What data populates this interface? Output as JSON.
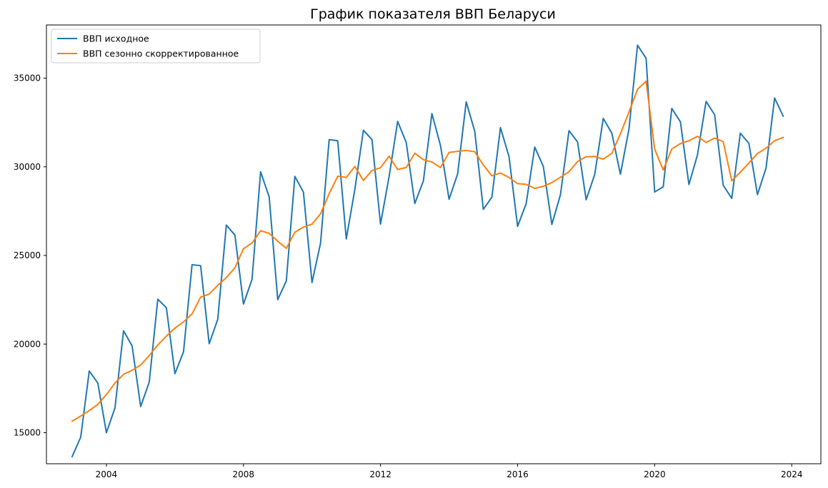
{
  "chart_data": {
    "type": "line",
    "title": "График показателя ВВП Беларуси",
    "xlabel": "",
    "ylabel": "",
    "x_start": "2003-01",
    "x_step": "quarter",
    "xlim": [
      2002.25,
      2024.85
    ],
    "ylim": [
      13250,
      38000
    ],
    "x_ticks": [
      2004,
      2008,
      2012,
      2016,
      2020,
      2024
    ],
    "y_ticks": [
      15000,
      20000,
      25000,
      30000,
      35000
    ],
    "grid": false,
    "legend_position": "top-left",
    "x": [
      2003.0,
      2003.25,
      2003.5,
      2003.75,
      2004.0,
      2004.25,
      2004.5,
      2004.75,
      2005.0,
      2005.25,
      2005.5,
      2005.75,
      2006.0,
      2006.25,
      2006.5,
      2006.75,
      2007.0,
      2007.25,
      2007.5,
      2007.75,
      2008.0,
      2008.25,
      2008.5,
      2008.75,
      2009.0,
      2009.25,
      2009.5,
      2009.75,
      2010.0,
      2010.25,
      2010.5,
      2010.75,
      2011.0,
      2011.25,
      2011.5,
      2011.75,
      2012.0,
      2012.25,
      2012.5,
      2012.75,
      2013.0,
      2013.25,
      2013.5,
      2013.75,
      2014.0,
      2014.25,
      2014.5,
      2014.75,
      2015.0,
      2015.25,
      2015.5,
      2015.75,
      2016.0,
      2016.25,
      2016.5,
      2016.75,
      2017.0,
      2017.25,
      2017.5,
      2017.75,
      2018.0,
      2018.25,
      2018.5,
      2018.75,
      2019.0,
      2019.25,
      2019.5,
      2019.75,
      2020.0,
      2020.25,
      2020.5,
      2020.75,
      2021.0,
      2021.25,
      2021.5,
      2021.75,
      2022.0,
      2022.25,
      2022.5,
      2022.75,
      2023.0,
      2023.25,
      2023.5,
      2023.75
    ],
    "series": [
      {
        "name": "ВВП исходное",
        "color": "#1f77b4",
        "values": [
          13650,
          14750,
          18480,
          17800,
          15000,
          16400,
          20750,
          19900,
          16480,
          17850,
          22530,
          22050,
          18330,
          19560,
          24480,
          24420,
          20020,
          21400,
          26710,
          26150,
          22260,
          23650,
          29720,
          28300,
          22510,
          23560,
          29460,
          28570,
          23470,
          25700,
          31530,
          31470,
          25930,
          28720,
          32060,
          31540,
          26770,
          29450,
          32560,
          31370,
          27930,
          29200,
          33000,
          31200,
          28170,
          29600,
          33660,
          32000,
          27600,
          28290,
          32210,
          30570,
          26640,
          27920,
          31110,
          30030,
          26750,
          28420,
          32040,
          31400,
          28140,
          29560,
          32730,
          31900,
          29580,
          32120,
          36860,
          36120,
          28580,
          28870,
          33290,
          32540,
          29000,
          30680,
          33690,
          32940,
          28960,
          28220,
          31900,
          31320,
          28430,
          29930,
          33880,
          32860
        ]
      },
      {
        "name": "ВВП сезонно скорректированное",
        "color": "#ff7f0e",
        "values": [
          15650,
          15940,
          16250,
          16600,
          17150,
          17800,
          18300,
          18520,
          18820,
          19350,
          19950,
          20450,
          20900,
          21250,
          21700,
          22650,
          22820,
          23320,
          23750,
          24300,
          25380,
          25700,
          26390,
          26250,
          25800,
          25400,
          26310,
          26600,
          26770,
          27350,
          28480,
          29470,
          29400,
          30020,
          29230,
          29790,
          29950,
          30600,
          29850,
          29960,
          30770,
          30400,
          30270,
          29960,
          30810,
          30870,
          30920,
          30850,
          30100,
          29490,
          29650,
          29400,
          29050,
          29010,
          28780,
          28900,
          29110,
          29410,
          29720,
          30300,
          30570,
          30580,
          30430,
          30760,
          31860,
          33090,
          34370,
          34830,
          31000,
          29820,
          31010,
          31310,
          31470,
          31720,
          31370,
          31620,
          31420,
          29210,
          29700,
          30210,
          30750,
          31050,
          31470,
          31660
        ]
      }
    ]
  }
}
